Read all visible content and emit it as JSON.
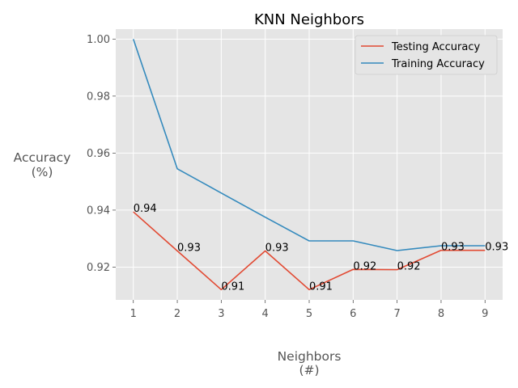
{
  "chart_data": {
    "type": "line",
    "title": "KNN Neighbors",
    "xlabel_lines": [
      "Neighbors",
      "(#)"
    ],
    "ylabel_lines": [
      "Accuracy",
      "(%)"
    ],
    "x": [
      1,
      2,
      3,
      4,
      5,
      6,
      7,
      8,
      9
    ],
    "xlim": [
      0.6,
      9.4
    ],
    "ylim": [
      0.9085,
      1.0035
    ],
    "yticks": [
      0.92,
      0.94,
      0.96,
      0.98,
      1.0
    ],
    "ytick_labels": [
      "0.92",
      "0.94",
      "0.96",
      "0.98",
      "1.00"
    ],
    "xtick_labels": [
      "1",
      "2",
      "3",
      "4",
      "5",
      "6",
      "7",
      "8",
      "9"
    ],
    "grid": true,
    "legend_position": "top-right",
    "series": [
      {
        "name": "Testing Accuracy",
        "color": "#E24A33",
        "values": [
          0.9394,
          0.9257,
          0.9121,
          0.9257,
          0.9121,
          0.9192,
          0.9191,
          0.9259,
          0.9259
        ],
        "labels": [
          "0.94",
          "0.93",
          "0.91",
          "0.93",
          "0.91",
          "0.92",
          "0.92",
          "0.93",
          "0.93"
        ]
      },
      {
        "name": "Training Accuracy",
        "color": "#348ABD",
        "values": [
          1.0,
          0.9545,
          0.946,
          0.9375,
          0.9292,
          0.9292,
          0.9258,
          0.9275,
          0.9275
        ]
      }
    ],
    "colors": {
      "plot_background": "#E5E5E5",
      "grid": "#FFFFFF"
    }
  }
}
